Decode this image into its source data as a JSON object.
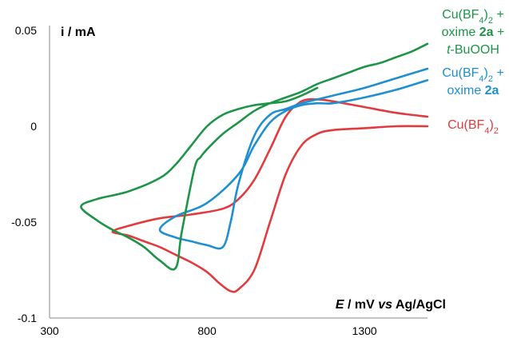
{
  "chart_data": {
    "type": "line",
    "title": "",
    "ylabel": "i / mA",
    "xlabel_parts": [
      "E",
      " / mV ",
      "vs",
      " Ag/AgCl"
    ],
    "xlim": [
      300,
      1500
    ],
    "ylim": [
      -0.1,
      0.05
    ],
    "xticks": [
      300,
      800,
      1300
    ],
    "xtick_labels": [
      "300",
      "800",
      "1300"
    ],
    "yticks": [
      0.05,
      0,
      -0.05,
      -0.1
    ],
    "ytick_labels": [
      "0.05",
      "0",
      "-0.05",
      "-0.1"
    ],
    "grid": false,
    "legend_placement": "right",
    "series": [
      {
        "name": "Cu(BF4)2",
        "label_lines": [
          [
            "Cu(BF",
            "4",
            ")",
            "2",
            ""
          ]
        ],
        "color": "#e23b3f",
        "x": [
          1500,
          1400,
          1300,
          1200,
          1150,
          1100,
          1050,
          1000,
          950,
          900,
          875,
          840,
          800,
          750,
          700,
          650,
          600,
          550,
          500,
          550,
          650,
          750,
          850,
          900,
          950,
          1000,
          1050,
          1100,
          1150,
          1200,
          1300,
          1400,
          1500
        ],
        "y": [
          0.0,
          0.0,
          -0.001,
          -0.002,
          -0.004,
          -0.01,
          -0.025,
          -0.05,
          -0.075,
          -0.085,
          -0.086,
          -0.082,
          -0.076,
          -0.071,
          -0.067,
          -0.063,
          -0.06,
          -0.057,
          -0.055,
          -0.052,
          -0.048,
          -0.046,
          -0.043,
          -0.038,
          -0.028,
          -0.012,
          0.005,
          0.013,
          0.014,
          0.013,
          0.01,
          0.007,
          0.005
        ]
      },
      {
        "name": "Cu(BF4)2 + oxime 2a",
        "label_lines": [
          [
            "Cu(BF",
            "4",
            ")",
            "2",
            " +"
          ],
          [
            "oxime ",
            "",
            "",
            "",
            "",
            "2a"
          ]
        ],
        "color": "#1f8fd0",
        "x": [
          1500,
          1400,
          1300,
          1200,
          1150,
          1100,
          1050,
          1000,
          950,
          900,
          875,
          850,
          800,
          750,
          700,
          650,
          700,
          800,
          900,
          950,
          1000,
          1050,
          1100,
          1150,
          1200,
          1300,
          1400,
          1500
        ],
        "y": [
          0.03,
          0.025,
          0.02,
          0.016,
          0.014,
          0.012,
          0.009,
          0.006,
          -0.005,
          -0.03,
          -0.05,
          -0.063,
          -0.062,
          -0.06,
          -0.058,
          -0.054,
          -0.047,
          -0.04,
          -0.025,
          -0.01,
          0.002,
          0.008,
          0.011,
          0.012,
          0.012,
          0.015,
          0.019,
          0.024
        ]
      },
      {
        "name": "Cu(BF4)2 + oxime 2a + t-BuOOH",
        "label_lines": [
          [
            "Cu(BF",
            "4",
            ")",
            "2",
            " +"
          ],
          [
            "oxime ",
            "",
            "",
            "",
            "",
            "2a",
            " +"
          ],
          [
            "t",
            "-BuOOH"
          ]
        ],
        "color": "#1e9448",
        "x": [
          1500,
          1450,
          1400,
          1350,
          1300,
          1250,
          1200,
          1150,
          1100,
          1050,
          1000,
          950,
          900,
          850,
          800,
          780,
          760,
          720,
          700,
          650,
          600,
          550,
          500,
          450,
          400,
          450,
          550,
          650,
          700,
          750,
          800,
          850,
          900,
          950,
          1000,
          1050,
          1100,
          1150
        ],
        "y": [
          0.043,
          0.039,
          0.036,
          0.033,
          0.031,
          0.028,
          0.025,
          0.022,
          0.018,
          0.015,
          0.012,
          0.008,
          0.002,
          -0.004,
          -0.012,
          -0.016,
          -0.022,
          -0.055,
          -0.074,
          -0.07,
          -0.063,
          -0.058,
          -0.054,
          -0.049,
          -0.042,
          -0.038,
          -0.034,
          -0.027,
          -0.02,
          -0.01,
          0.0,
          0.006,
          0.009,
          0.011,
          0.012,
          0.013,
          0.016,
          0.02
        ]
      }
    ]
  }
}
